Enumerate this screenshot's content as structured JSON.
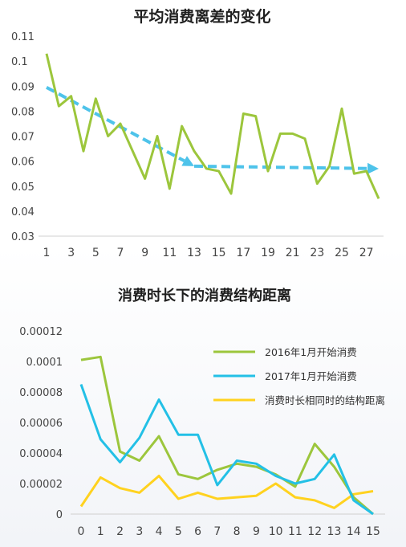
{
  "colors": {
    "green": "#9cc63c",
    "cyan": "#23c0e6",
    "yellow": "#ffd21f",
    "trend": "#4ec3ea"
  },
  "chart_data": [
    {
      "type": "line",
      "title": "平均消费离差的变化",
      "x": [
        1,
        2,
        3,
        4,
        5,
        6,
        7,
        8,
        9,
        10,
        11,
        12,
        13,
        14,
        15,
        16,
        17,
        18,
        19,
        20,
        21,
        22,
        23,
        24,
        25,
        26,
        27,
        28
      ],
      "x_tick_labels": [
        "1",
        "3",
        "5",
        "7",
        "9",
        "11",
        "13",
        "15",
        "17",
        "19",
        "21",
        "23",
        "25",
        "27"
      ],
      "y_tick_labels": [
        "0.11",
        "0.1",
        "0.09",
        "0.08",
        "0.07",
        "0.06",
        "0.05",
        "0.04",
        "0.03"
      ],
      "ylim": [
        0.03,
        0.11
      ],
      "series": [
        {
          "values": [
            0.103,
            0.082,
            0.086,
            0.064,
            0.085,
            0.07,
            0.075,
            0.064,
            0.053,
            0.07,
            0.049,
            0.074,
            0.064,
            0.057,
            0.056,
            0.047,
            0.079,
            0.078,
            0.056,
            0.071,
            0.071,
            0.069,
            0.051,
            0.058,
            0.081,
            0.055,
            0.056,
            0.045
          ]
        }
      ],
      "trend_arrows": [
        {
          "from": [
            1,
            0.0895
          ],
          "to": [
            13,
            0.058
          ]
        },
        {
          "from": [
            13,
            0.058
          ],
          "to": [
            28,
            0.057
          ]
        }
      ],
      "grid": false
    },
    {
      "type": "line",
      "title": "消费时长下的消费结构距离",
      "x": [
        0,
        1,
        2,
        3,
        4,
        5,
        6,
        7,
        8,
        9,
        10,
        11,
        12,
        13,
        14,
        15
      ],
      "x_tick_labels": [
        "0",
        "1",
        "2",
        "3",
        "4",
        "5",
        "6",
        "7",
        "8",
        "9",
        "10",
        "11",
        "12",
        "13",
        "14",
        "15"
      ],
      "y_tick_labels": [
        "0.00012",
        "0.0001",
        "0.00008",
        "0.00006",
        "0.00004",
        "0.00002",
        "0"
      ],
      "ylim": [
        0,
        0.00012
      ],
      "legend_position": "top-right",
      "series": [
        {
          "name": "2016年1月开始消费",
          "color_key": "green",
          "values": [
            0.000101,
            0.000103,
            4.1e-05,
            3.5e-05,
            5.1e-05,
            2.6e-05,
            2.3e-05,
            2.9e-05,
            3.3e-05,
            3.1e-05,
            2.6e-05,
            1.8e-05,
            4.6e-05,
            3.1e-05,
            1.1e-05,
            0.0
          ]
        },
        {
          "name": "2017年1月开始消费",
          "color_key": "cyan",
          "values": [
            8.5e-05,
            4.9e-05,
            3.4e-05,
            5e-05,
            7.5e-05,
            5.2e-05,
            5.2e-05,
            1.9e-05,
            3.5e-05,
            3.3e-05,
            2.5e-05,
            2e-05,
            2.3e-05,
            3.9e-05,
            9e-06,
            0.0
          ]
        },
        {
          "name": "消费时长相同时的结构距离",
          "color_key": "yellow",
          "values": [
            5e-06,
            2.4e-05,
            1.7e-05,
            1.4e-05,
            2.5e-05,
            1e-05,
            1.4e-05,
            1e-05,
            1.1e-05,
            1.2e-05,
            2e-05,
            1.1e-05,
            9e-06,
            4e-06,
            1.3e-05,
            1.5e-05
          ]
        }
      ],
      "grid": false
    }
  ]
}
